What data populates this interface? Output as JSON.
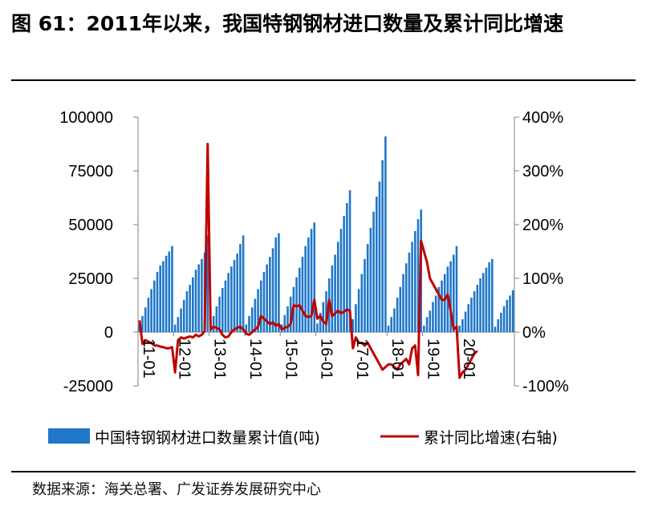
{
  "title": "图 61：2011年以来，我国特钢钢材进口数量及累计同比增速",
  "source": "数据来源：海关总署、广发证券发展研究中心",
  "chart_data": {
    "type": "bar+line",
    "left_axis": {
      "ylim": [
        -25000,
        100000
      ],
      "ticks": [
        "100000",
        "75000",
        "50000",
        "25000",
        "0",
        "-25000"
      ],
      "tick_values": [
        100000,
        75000,
        50000,
        25000,
        0,
        -25000
      ]
    },
    "right_axis": {
      "ylim": [
        -100,
        400
      ],
      "ticks": [
        "400%",
        "300%",
        "200%",
        "100%",
        "0%",
        "-100%"
      ],
      "tick_values": [
        400,
        300,
        200,
        100,
        0,
        -100
      ]
    },
    "x_tick_labels": [
      "11-01",
      "12-01",
      "13-01",
      "14-01",
      "15-01",
      "16-01",
      "17-01",
      "18-01",
      "19-01",
      "20-01"
    ],
    "legend_position": "bottom",
    "colors": {
      "bar": "#1f77c8",
      "line": "#c00000",
      "axis": "#808080"
    },
    "series": [
      {
        "name": "中国特钢钢材进口数量累计值(吨)",
        "type": "bar",
        "axis": "left",
        "values": [
          3600,
          7500,
          11500,
          16000,
          20000,
          24000,
          28000,
          31000,
          33000,
          35500,
          37500,
          40000,
          3500,
          7000,
          11000,
          15000,
          19000,
          22000,
          25500,
          29000,
          31500,
          34000,
          37000,
          45000,
          3500,
          7500,
          12000,
          16500,
          20500,
          24000,
          27500,
          30500,
          33500,
          36500,
          41000,
          45000,
          3500,
          7500,
          11500,
          15500,
          20000,
          24000,
          28000,
          31500,
          35000,
          39000,
          44000,
          46000,
          3500,
          8000,
          12000,
          16500,
          21000,
          25500,
          30000,
          35000,
          40000,
          44000,
          48000,
          51000,
          4000,
          9000,
          14000,
          19000,
          25000,
          31000,
          36000,
          42000,
          48000,
          54000,
          60000,
          66000,
          6000,
          13000,
          20000,
          27000,
          34000,
          41000,
          48500,
          56000,
          63000,
          70000,
          80000,
          91000,
          3000,
          7000,
          11000,
          16000,
          21000,
          27000,
          32000,
          37000,
          42000,
          47000,
          52500,
          57000,
          3000,
          7000,
          10000,
          14000,
          17000,
          21000,
          24000,
          27000,
          30500,
          33000,
          36000,
          40000,
          3000,
          6000,
          9500,
          13000,
          16000,
          19000,
          22000,
          25000,
          27500,
          30000,
          32500,
          34000,
          2500,
          6000,
          9000,
          12000,
          15000,
          17000,
          19500
        ]
      },
      {
        "name": "累计同比增速(右轴)",
        "type": "line",
        "axis": "right",
        "values": [
          22,
          -22,
          -15,
          -18,
          -20,
          -25,
          -25,
          -27,
          -28,
          -30,
          -30,
          -28,
          -75,
          -15,
          -10,
          -12,
          -10,
          -8,
          -10,
          -5,
          -8,
          -5,
          2,
          350,
          5,
          10,
          8,
          5,
          -5,
          -10,
          -8,
          0,
          5,
          8,
          10,
          5,
          -3,
          -5,
          0,
          5,
          10,
          30,
          25,
          20,
          15,
          18,
          12,
          15,
          5,
          8,
          10,
          15,
          50,
          48,
          50,
          40,
          30,
          28,
          30,
          60,
          25,
          30,
          20,
          15,
          60,
          30,
          35,
          40,
          35,
          38,
          42,
          40,
          -30,
          -10,
          -20,
          -20,
          -25,
          -20,
          -30,
          -40,
          -50,
          -60,
          -70,
          -65,
          -60,
          -60,
          -65,
          -70,
          -60,
          -55,
          -50,
          -60,
          -30,
          -25,
          -80,
          170,
          150,
          130,
          100,
          90,
          80,
          70,
          60,
          60,
          70,
          40,
          5,
          10,
          -85,
          -75,
          -70,
          -60,
          -50,
          -40,
          -35
        ]
      }
    ]
  }
}
